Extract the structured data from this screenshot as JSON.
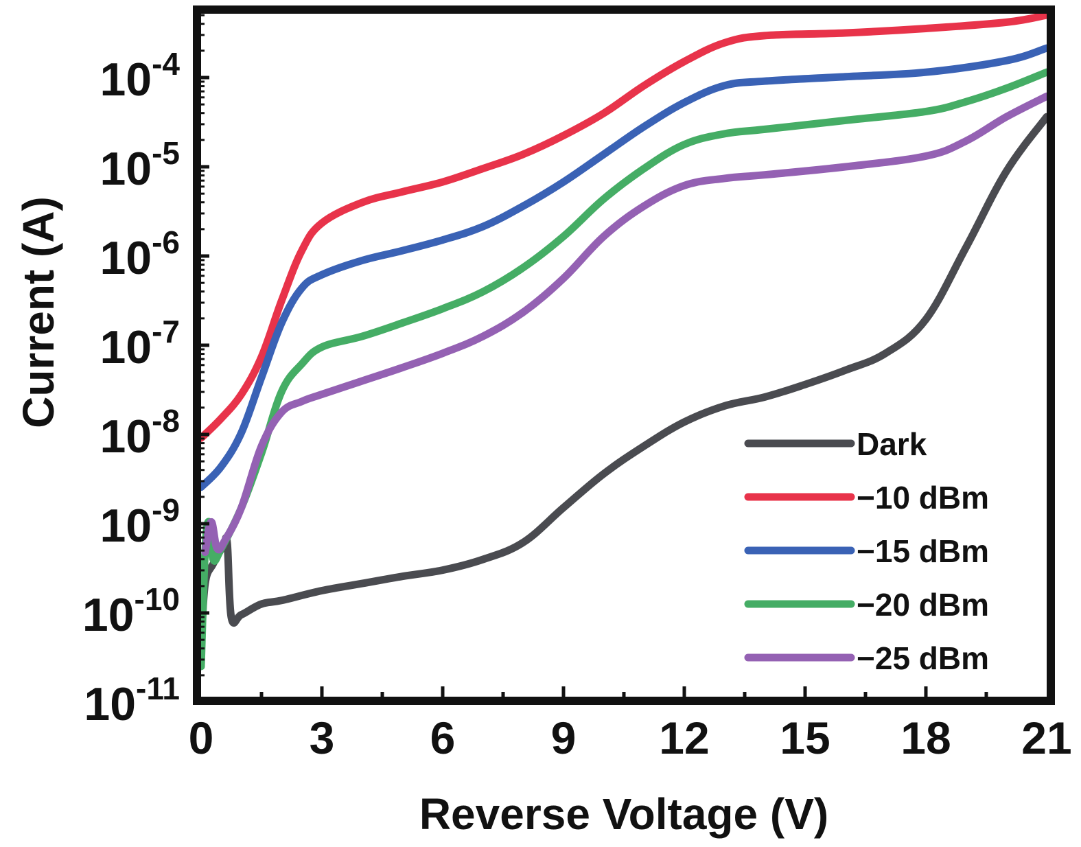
{
  "chart_data": {
    "type": "line",
    "title": "",
    "xlabel": "Reverse Voltage (V)",
    "ylabel": "Current (A)",
    "xscale": "linear",
    "yscale": "log",
    "xlim": [
      0,
      21
    ],
    "ylim": [
      1e-11,
      0.0006
    ],
    "xticks": [
      0,
      3,
      6,
      9,
      12,
      15,
      18,
      21
    ],
    "xtick_labels": [
      "0",
      "3",
      "6",
      "9",
      "12",
      "15",
      "18",
      "21"
    ],
    "yticks_exp": [
      -11,
      -10,
      -9,
      -8,
      -7,
      -6,
      -5,
      -4
    ],
    "ytick_base": "10",
    "ytick_labels": [
      "10-11",
      "10-10",
      "10-9",
      "10-8",
      "10-7",
      "10-6",
      "10-5",
      "10-4"
    ],
    "grid": false,
    "legend_position": "bottom-right",
    "series": [
      {
        "name": "Dark",
        "color": "#4a4b50",
        "x": [
          0,
          0.1,
          0.3,
          0.55,
          0.65,
          0.75,
          1,
          1.5,
          2,
          3,
          4,
          5,
          6,
          7,
          8,
          9,
          10,
          11,
          12,
          13,
          14,
          15,
          16,
          17,
          18,
          19,
          20,
          21
        ],
        "log10_y": [
          -10.36,
          -9.67,
          -9.45,
          -9.25,
          -9.22,
          -10.05,
          -10.02,
          -9.9,
          -9.86,
          -9.75,
          -9.67,
          -9.59,
          -9.52,
          -9.4,
          -9.21,
          -8.82,
          -8.44,
          -8.13,
          -7.86,
          -7.68,
          -7.58,
          -7.44,
          -7.28,
          -7.09,
          -6.71,
          -5.9,
          -5.05,
          -4.44
        ]
      },
      {
        "name": "−10 dBm",
        "color": "#e8334a",
        "x": [
          0,
          0.5,
          1,
          1.5,
          2,
          2.5,
          3,
          4,
          5,
          6,
          7,
          8,
          9,
          10,
          11,
          12,
          13,
          14,
          16,
          18,
          20,
          21
        ],
        "log10_y": [
          -8.04,
          -7.82,
          -7.55,
          -7.13,
          -6.5,
          -5.94,
          -5.63,
          -5.4,
          -5.28,
          -5.17,
          -5.02,
          -4.86,
          -4.65,
          -4.4,
          -4.09,
          -3.82,
          -3.61,
          -3.53,
          -3.5,
          -3.45,
          -3.38,
          -3.3
        ]
      },
      {
        "name": "−15 dBm",
        "color": "#3a62b5",
        "x": [
          0,
          0.5,
          1,
          1.5,
          2,
          2.5,
          3,
          4,
          5,
          6,
          7,
          8,
          9,
          10,
          11,
          12,
          13,
          14,
          16,
          18,
          20,
          21
        ],
        "log10_y": [
          -8.59,
          -8.36,
          -7.98,
          -7.36,
          -6.75,
          -6.36,
          -6.21,
          -6.05,
          -5.94,
          -5.82,
          -5.67,
          -5.44,
          -5.17,
          -4.86,
          -4.55,
          -4.28,
          -4.09,
          -4.04,
          -3.99,
          -3.94,
          -3.81,
          -3.67
        ]
      },
      {
        "name": "−20 dBm",
        "color": "#45ad65",
        "x": [
          0,
          0.1,
          0.2,
          0.3,
          0.5,
          1,
          1.5,
          2,
          2.5,
          3,
          4,
          5,
          6,
          7,
          8,
          9,
          10,
          11,
          12,
          13,
          14,
          16,
          18,
          19,
          20,
          21
        ],
        "log10_y": [
          -10.6,
          -9.3,
          -8.98,
          -9.4,
          -9.28,
          -8.82,
          -8.21,
          -7.52,
          -7.21,
          -7.02,
          -6.9,
          -6.75,
          -6.59,
          -6.4,
          -6.13,
          -5.78,
          -5.36,
          -5.02,
          -4.75,
          -4.63,
          -4.58,
          -4.48,
          -4.38,
          -4.27,
          -4.12,
          -3.94
        ]
      },
      {
        "name": "−25 dBm",
        "color": "#9461b3",
        "x": [
          0.1,
          0.25,
          0.4,
          0.6,
          1,
          1.5,
          2,
          2.5,
          3,
          4,
          5,
          6,
          7,
          8,
          9,
          10,
          11,
          12,
          13,
          14,
          16,
          18,
          19,
          20,
          21
        ],
        "log10_y": [
          -9.32,
          -8.98,
          -9.28,
          -9.18,
          -8.82,
          -8.13,
          -7.75,
          -7.63,
          -7.55,
          -7.4,
          -7.25,
          -7.09,
          -6.9,
          -6.63,
          -6.25,
          -5.78,
          -5.44,
          -5.21,
          -5.13,
          -5.09,
          -5.0,
          -4.88,
          -4.71,
          -4.44,
          -4.21
        ]
      }
    ]
  }
}
